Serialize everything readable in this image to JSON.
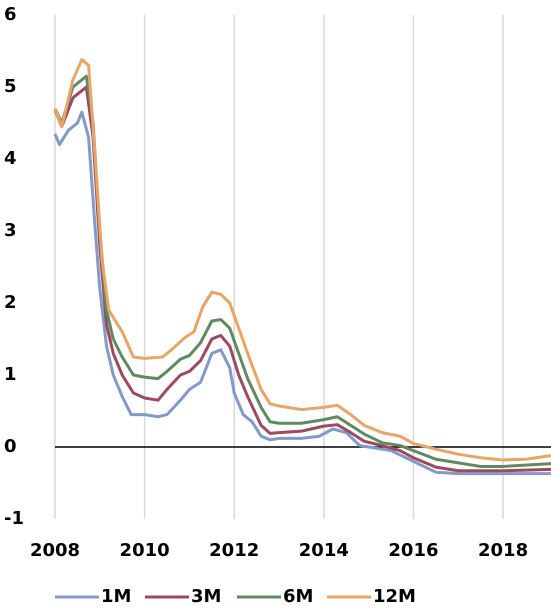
{
  "chart_data": {
    "type": "line",
    "xlim": [
      2008,
      2019.07
    ],
    "xticks": [
      2008,
      2010,
      2012,
      2014,
      2016,
      2018
    ],
    "ylim": [
      -1,
      6
    ],
    "yticks": [
      -1,
      0,
      1,
      2,
      3,
      4,
      5,
      6
    ],
    "grid": true,
    "legend": "bottom",
    "series": [
      {
        "name": "1M",
        "color": "#8399c9",
        "x": [
          2008.0,
          2008.1,
          2008.3,
          2008.5,
          2008.6,
          2008.75,
          2008.9,
          2009.0,
          2009.15,
          2009.3,
          2009.5,
          2009.7,
          2010.0,
          2010.3,
          2010.5,
          2010.8,
          2011.0,
          2011.25,
          2011.5,
          2011.7,
          2011.9,
          2012.0,
          2012.2,
          2012.4,
          2012.6,
          2012.8,
          2013.0,
          2013.5,
          2013.9,
          2014.2,
          2014.5,
          2014.8,
          2015.0,
          2015.5,
          2016.0,
          2016.5,
          2017.0,
          2017.5,
          2018.0,
          2018.5,
          2019.07
        ],
        "values": [
          4.35,
          4.2,
          4.4,
          4.5,
          4.65,
          4.3,
          3.0,
          2.2,
          1.4,
          1.0,
          0.7,
          0.45,
          0.45,
          0.42,
          0.45,
          0.65,
          0.8,
          0.9,
          1.3,
          1.35,
          1.1,
          0.75,
          0.45,
          0.35,
          0.15,
          0.1,
          0.12,
          0.12,
          0.15,
          0.25,
          0.2,
          0.02,
          0.0,
          -0.05,
          -0.2,
          -0.35,
          -0.37,
          -0.37,
          -0.37,
          -0.37,
          -0.37
        ]
      },
      {
        "name": "3M",
        "color": "#9b4a5f",
        "x": [
          2008.0,
          2008.15,
          2008.4,
          2008.7,
          2008.85,
          2009.0,
          2009.15,
          2009.3,
          2009.5,
          2009.75,
          2010.0,
          2010.3,
          2010.5,
          2010.8,
          2011.0,
          2011.25,
          2011.5,
          2011.7,
          2011.9,
          2012.1,
          2012.3,
          2012.6,
          2012.8,
          2013.0,
          2013.5,
          2014.0,
          2014.3,
          2014.6,
          2014.9,
          2015.3,
          2015.7,
          2016.0,
          2016.5,
          2017.0,
          2018.0,
          2019.07
        ],
        "values": [
          4.68,
          4.45,
          4.85,
          5.0,
          4.3,
          2.8,
          1.7,
          1.3,
          1.0,
          0.75,
          0.68,
          0.65,
          0.8,
          1.0,
          1.05,
          1.2,
          1.5,
          1.55,
          1.4,
          1.0,
          0.7,
          0.3,
          0.19,
          0.2,
          0.22,
          0.29,
          0.31,
          0.2,
          0.08,
          0.02,
          -0.05,
          -0.15,
          -0.28,
          -0.33,
          -0.33,
          -0.31
        ]
      },
      {
        "name": "6M",
        "color": "#5f8a5f",
        "x": [
          2008.0,
          2008.15,
          2008.4,
          2008.7,
          2008.85,
          2009.0,
          2009.15,
          2009.3,
          2009.5,
          2009.75,
          2010.0,
          2010.3,
          2010.5,
          2010.8,
          2011.0,
          2011.25,
          2011.5,
          2011.7,
          2011.9,
          2012.1,
          2012.3,
          2012.6,
          2012.8,
          2013.0,
          2013.5,
          2014.0,
          2014.3,
          2014.6,
          2014.9,
          2015.3,
          2015.7,
          2016.0,
          2016.5,
          2017.0,
          2017.5,
          2018.0,
          2019.07
        ],
        "values": [
          4.7,
          4.5,
          5.0,
          5.15,
          4.5,
          3.0,
          1.9,
          1.5,
          1.25,
          1.0,
          0.97,
          0.95,
          1.05,
          1.22,
          1.27,
          1.45,
          1.75,
          1.77,
          1.65,
          1.3,
          0.95,
          0.55,
          0.35,
          0.33,
          0.33,
          0.38,
          0.42,
          0.3,
          0.18,
          0.06,
          0.02,
          -0.05,
          -0.17,
          -0.22,
          -0.27,
          -0.27,
          -0.23
        ]
      },
      {
        "name": "12M",
        "color": "#e9a565",
        "x": [
          2008.0,
          2008.15,
          2008.4,
          2008.6,
          2008.75,
          2008.9,
          2009.05,
          2009.2,
          2009.5,
          2009.75,
          2010.0,
          2010.4,
          2010.6,
          2010.9,
          2011.1,
          2011.3,
          2011.5,
          2011.7,
          2011.9,
          2012.1,
          2012.3,
          2012.6,
          2012.8,
          2013.0,
          2013.5,
          2014.0,
          2014.3,
          2014.6,
          2014.9,
          2015.3,
          2015.7,
          2016.0,
          2016.5,
          2017.0,
          2017.5,
          2018.0,
          2018.5,
          2019.07
        ],
        "values": [
          4.7,
          4.45,
          5.1,
          5.38,
          5.3,
          4.0,
          2.6,
          1.9,
          1.6,
          1.25,
          1.23,
          1.25,
          1.35,
          1.52,
          1.6,
          1.95,
          2.15,
          2.12,
          2.0,
          1.65,
          1.3,
          0.8,
          0.6,
          0.57,
          0.52,
          0.55,
          0.58,
          0.45,
          0.3,
          0.2,
          0.15,
          0.05,
          -0.03,
          -0.1,
          -0.15,
          -0.18,
          -0.17,
          -0.12
        ]
      }
    ]
  }
}
